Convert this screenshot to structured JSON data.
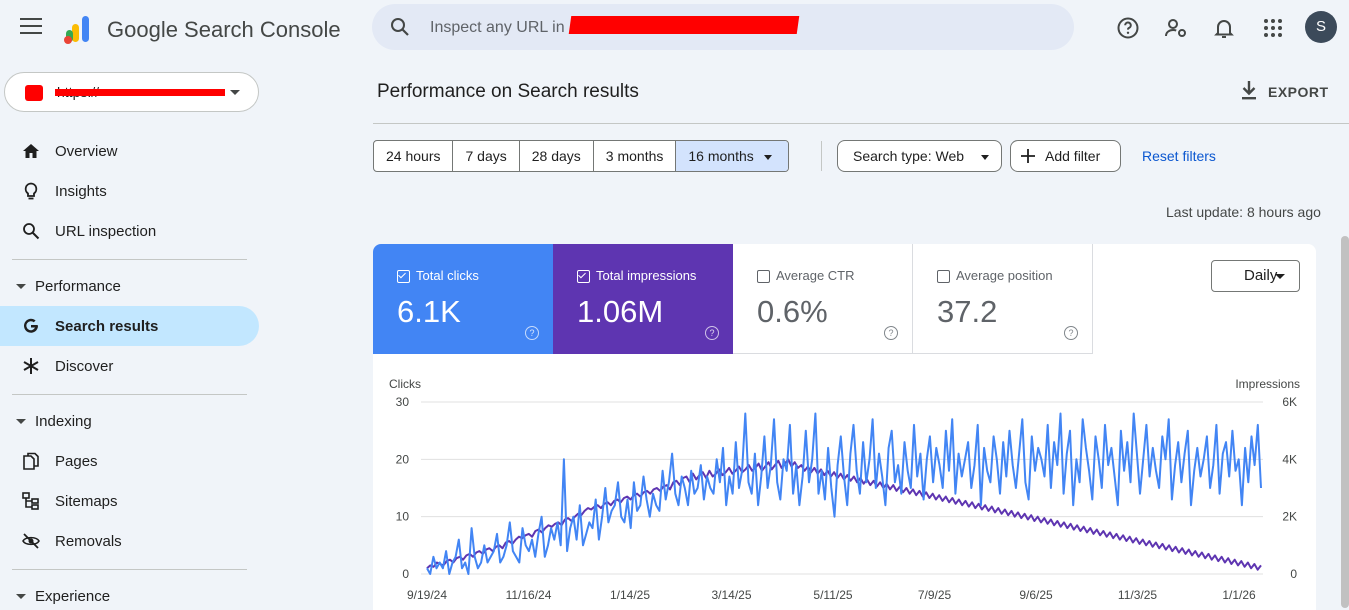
{
  "app": {
    "name": "Google Search Console"
  },
  "search": {
    "placeholder": "Inspect any URL in"
  },
  "user": {
    "initial": "S"
  },
  "property": {
    "label": "https://"
  },
  "sidebar": {
    "items": [
      {
        "label": "Overview"
      },
      {
        "label": "Insights"
      },
      {
        "label": "URL inspection"
      }
    ],
    "sections": [
      {
        "label": "Performance",
        "items": [
          {
            "label": "Search results",
            "active": true
          },
          {
            "label": "Discover"
          }
        ]
      },
      {
        "label": "Indexing",
        "items": [
          {
            "label": "Pages"
          },
          {
            "label": "Sitemaps"
          },
          {
            "label": "Removals"
          }
        ]
      },
      {
        "label": "Experience"
      }
    ]
  },
  "main": {
    "title": "Performance on Search results",
    "export_label": "EXPORT",
    "date_ranges": [
      "24 hours",
      "7 days",
      "28 days",
      "3 months",
      "16 months"
    ],
    "selected_range": "16 months",
    "search_type": "Search type: Web",
    "add_filter": "Add filter",
    "reset_filters": "Reset filters",
    "last_update": "Last update: 8 hours ago",
    "granularity": "Daily"
  },
  "metrics": [
    {
      "label": "Total clicks",
      "value": "6.1K",
      "checked": true
    },
    {
      "label": "Total impressions",
      "value": "1.06M",
      "checked": true
    },
    {
      "label": "Average CTR",
      "value": "0.6%",
      "checked": false
    },
    {
      "label": "Average position",
      "value": "37.2",
      "checked": false
    }
  ],
  "colors": {
    "clicks": "#4285f4",
    "impressions": "#5e35b1",
    "accent": "#0b57d0",
    "active_nav": "#c2e7ff"
  },
  "chart_data": {
    "type": "line",
    "ylabel": "Clicks",
    "y2label": "Impressions",
    "ylim": [
      0,
      30
    ],
    "y2lim": [
      0,
      6000
    ],
    "yticks": [
      "0",
      "10",
      "20",
      "30"
    ],
    "y2ticks": [
      "0",
      "2K",
      "4K",
      "6K"
    ],
    "xticks": [
      "9/19/24",
      "11/16/24",
      "1/14/25",
      "3/14/25",
      "5/11/25",
      "7/9/25",
      "9/6/25",
      "11/3/25",
      "1/1/26"
    ],
    "grid": true,
    "series": [
      {
        "name": "Clicks",
        "axis": "left",
        "values": [
          1,
          0,
          3,
          1,
          2,
          1,
          4,
          0,
          2,
          3,
          6,
          1,
          2,
          0,
          8,
          3,
          1,
          2,
          5,
          2,
          3,
          4,
          7,
          2,
          3,
          5,
          9,
          4,
          3,
          2,
          8,
          5,
          4,
          6,
          3,
          7,
          10,
          3,
          5,
          8,
          6,
          9,
          5,
          20,
          4,
          8,
          10,
          6,
          12,
          5,
          7,
          9,
          8,
          13,
          6,
          10,
          15,
          9,
          11,
          12,
          16,
          10,
          9,
          13,
          8,
          16,
          11,
          12,
          17,
          13,
          10,
          14,
          12,
          11,
          18,
          13,
          16,
          21,
          14,
          12,
          17,
          15,
          12,
          18,
          14,
          15,
          19,
          13,
          17,
          15,
          14,
          20,
          16,
          22,
          12,
          17,
          14,
          23,
          15,
          18,
          28,
          16,
          14,
          21,
          12,
          17,
          24,
          15,
          19,
          27,
          16,
          13,
          20,
          18,
          26,
          14,
          19,
          12,
          17,
          25,
          16,
          20,
          28,
          14,
          18,
          13,
          22,
          15,
          10,
          19,
          24,
          17,
          12,
          21,
          26,
          18,
          14,
          23,
          16,
          20,
          27,
          15,
          21,
          17,
          12,
          22,
          25,
          16,
          19,
          14,
          23,
          18,
          15,
          26,
          17,
          21,
          13,
          20,
          24,
          16,
          22,
          19,
          15,
          25,
          18,
          27,
          14,
          21,
          17,
          20,
          23,
          15,
          19,
          26,
          12,
          22,
          18,
          16,
          24,
          20,
          14,
          23,
          17,
          25,
          19,
          15,
          21,
          27,
          16,
          13,
          24,
          18,
          22,
          20,
          17,
          26,
          15,
          23,
          19,
          28,
          14,
          21,
          25,
          12,
          20,
          16,
          27,
          22,
          18,
          13,
          24,
          20,
          15,
          26,
          19,
          22,
          17,
          12,
          25,
          18,
          23,
          16,
          28,
          21,
          14,
          20,
          26,
          17,
          22,
          18,
          15,
          24,
          20,
          27,
          13,
          19,
          23,
          16,
          21,
          25,
          12,
          18,
          22,
          17,
          20,
          24,
          15,
          19,
          26,
          14,
          21,
          23,
          17,
          25,
          18,
          20,
          12,
          22,
          16,
          24,
          19,
          26,
          15
        ],
        "note": "daily clicks from 9/19/24 to early 2026, read approximately from chart"
      },
      {
        "name": "Impressions",
        "axis": "right",
        "values": [
          200,
          300,
          250,
          400,
          350,
          300,
          450,
          500,
          400,
          550,
          600,
          500,
          650,
          700,
          600,
          750,
          800,
          700,
          850,
          900,
          800,
          950,
          1000,
          900,
          1100,
          1150,
          1050,
          1200,
          1300,
          1250,
          1350,
          1400,
          1300,
          1500,
          1550,
          1450,
          1600,
          1700,
          1650,
          1750,
          1800,
          1700,
          1900,
          1950,
          1850,
          2000,
          2100,
          2050,
          2200,
          2300,
          2250,
          2350,
          2400,
          2300,
          2450,
          2500,
          2400,
          2550,
          2600,
          2500,
          2650,
          2700,
          2600,
          2750,
          2800,
          2700,
          2850,
          2900,
          2800,
          2950,
          3000,
          2900,
          3050,
          3100,
          2950,
          3200,
          3250,
          3100,
          3350,
          3400,
          3200,
          3500,
          3300,
          3450,
          3550,
          3350,
          3600,
          3400,
          3500,
          3650,
          3450,
          3550,
          3700,
          3500,
          3600,
          3750,
          3550,
          3650,
          3800,
          3600,
          3700,
          3850,
          3600,
          3750,
          3900,
          3650,
          3800,
          3950,
          3700,
          3850,
          4000,
          3750,
          3900,
          3700,
          3800,
          3600,
          3750,
          3550,
          3700,
          3500,
          3650,
          3450,
          3600,
          3400,
          3550,
          3350,
          3500,
          3300,
          3450,
          3250,
          3400,
          3200,
          3350,
          3150,
          3300,
          3100,
          3250,
          3050,
          3200,
          3000,
          3150,
          2950,
          3100,
          2900,
          3050,
          2850,
          3000,
          2800,
          2950,
          2750,
          2900,
          2700,
          2850,
          2650,
          2800,
          2600,
          2750,
          2550,
          2700,
          2500,
          2650,
          2450,
          2600,
          2400,
          2550,
          2350,
          2500,
          2300,
          2450,
          2250,
          2400,
          2200,
          2350,
          2150,
          2300,
          2100,
          2250,
          2050,
          2200,
          2000,
          2150,
          1950,
          2100,
          1900,
          2050,
          1850,
          2000,
          1800,
          1950,
          1750,
          1900,
          1700,
          1850,
          1650,
          1800,
          1600,
          1750,
          1550,
          1700,
          1500,
          1650,
          1450,
          1600,
          1400,
          1550,
          1350,
          1500,
          1300,
          1450,
          1250,
          1400,
          1200,
          1350,
          1150,
          1300,
          1100,
          1250,
          1050,
          1200,
          1000,
          1150,
          950,
          1100,
          900,
          1050,
          850,
          1000,
          800,
          950,
          750,
          900,
          700,
          850,
          650,
          800,
          600,
          750,
          550,
          700,
          500,
          650,
          450,
          600,
          400,
          550,
          350,
          500,
          300,
          450,
          250,
          400,
          200,
          350,
          150,
          300
        ],
        "note": "Impressions trend placeholder: the true shape resembles clicks, scaled"
      }
    ]
  }
}
